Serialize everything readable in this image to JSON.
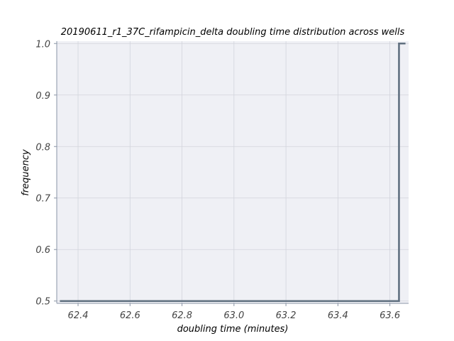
{
  "chart_data": {
    "type": "line",
    "title": "20190611_r1_37C_rifampicin_delta doubling time distribution across wells",
    "xlabel": "doubling time (minutes)",
    "ylabel": "frequency",
    "xlim": [
      62.318,
      63.672
    ],
    "ylim": [
      0.4955,
      1.0045
    ],
    "xticks": [
      62.4,
      62.6,
      62.8,
      63.0,
      63.2,
      63.4,
      63.6
    ],
    "xtick_labels": [
      "62.4",
      "62.6",
      "62.8",
      "63.0",
      "63.2",
      "63.4",
      "63.6"
    ],
    "yticks": [
      0.5,
      0.6,
      0.7,
      0.8,
      0.9,
      1.0
    ],
    "ytick_labels": [
      "0.5",
      "0.6",
      "0.7",
      "0.8",
      "0.9",
      "1.0"
    ],
    "grid": true,
    "series": [
      {
        "style": "step",
        "x": [
          62.33,
          63.635,
          63.635,
          63.66
        ],
        "y": [
          0.5,
          0.5,
          1.0,
          1.0
        ]
      }
    ],
    "colors": {
      "plot_background": "#eff0f5",
      "grid": "#d2d4dc",
      "spine": "#8a94a6",
      "line": "#607080"
    }
  }
}
